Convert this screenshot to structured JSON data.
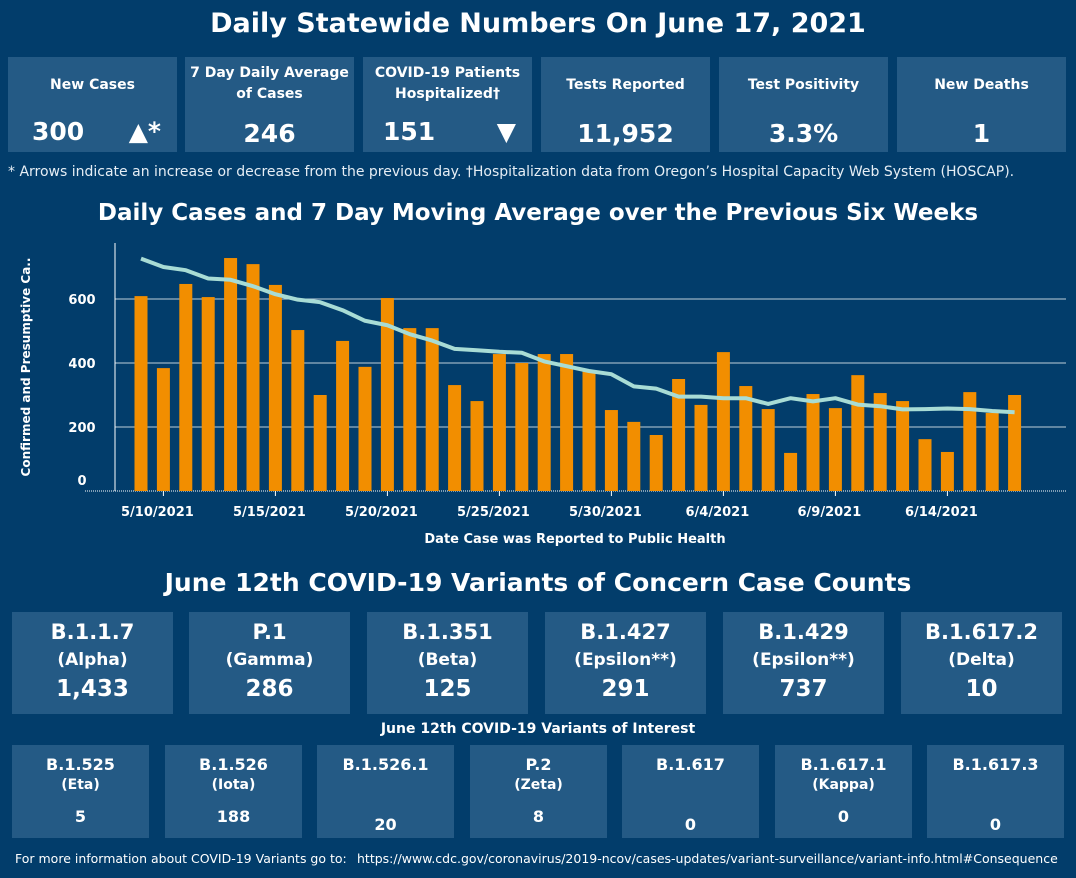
{
  "header": {
    "title": "Daily Statewide Numbers On June 17, 2021"
  },
  "kpis": [
    {
      "label": "New Cases",
      "value": "300",
      "indicator": "▲*"
    },
    {
      "label": "7 Day Daily Average of Cases",
      "value": "246"
    },
    {
      "label": "COVID-19 Patients Hospitalized†",
      "value": "151",
      "indicator": "▼"
    },
    {
      "label": "Tests Reported",
      "value": "11,952"
    },
    {
      "label": "Test Positivity",
      "value": "3.3%"
    },
    {
      "label": "New Deaths",
      "value": "1"
    }
  ],
  "footnote": "* Arrows indicate an increase or decrease from the previous day. †Hospitalization data from Oregon’s Hospital Capacity Web System (HOSCAP).",
  "chart_data": {
    "type": "bar",
    "title": "Daily Cases and 7 Day Moving Average over the Previous Six Weeks",
    "xlabel": "Date Case was Reported to Public Health",
    "ylabel": "Confirmed and Presumptive Ca..",
    "ylim": [
      0,
      770
    ],
    "yticks": [
      0,
      200,
      400,
      600
    ],
    "xtick_labels": [
      "5/10/2021",
      "5/15/2021",
      "5/20/2021",
      "5/25/2021",
      "5/30/2021",
      "6/4/2021",
      "6/9/2021",
      "6/14/2021"
    ],
    "grid": true,
    "start_date": "2021-05-09",
    "bar_color": "#f28e00",
    "line_color": "#a8dcd5",
    "series": [
      {
        "type": "bar",
        "values": [
          609,
          384,
          647,
          606,
          728,
          709,
          644,
          503,
          300,
          469,
          388,
          603,
          509,
          509,
          331,
          281,
          428,
          400,
          428,
          428,
          375,
          253,
          216,
          175,
          350,
          269,
          434,
          328,
          256,
          119,
          303,
          259,
          362,
          306,
          281,
          162,
          122,
          309,
          244,
          300
        ]
      },
      {
        "type": "line",
        "values": [
          726,
          700,
          690,
          664,
          660,
          640,
          615,
          598,
          590,
          565,
          532,
          518,
          490,
          470,
          444,
          440,
          435,
          432,
          405,
          390,
          375,
          365,
          327,
          320,
          295,
          295,
          290,
          290,
          272,
          290,
          280,
          290,
          270,
          265,
          255,
          256,
          258,
          256,
          250,
          246
        ]
      }
    ]
  },
  "variants": {
    "title": "June 12th  COVID-19 Variants of Concern Case Counts",
    "concern": [
      {
        "name": "B.1.1.7",
        "alias": "(Alpha)",
        "count": "1,433"
      },
      {
        "name": "P.1",
        "alias": "(Gamma)",
        "count": "286"
      },
      {
        "name": "B.1.351",
        "alias": "(Beta)",
        "count": "125"
      },
      {
        "name": "B.1.427",
        "alias": "(Epsilon**)",
        "count": "291"
      },
      {
        "name": "B.1.429",
        "alias": "(Epsilon**)",
        "count": "737"
      },
      {
        "name": "B.1.617.2",
        "alias": "(Delta)",
        "count": "10"
      }
    ],
    "interest_title": "June 12th COVID-19 Variants of Interest",
    "interest": [
      {
        "name": "B.1.525",
        "alias": "(Eta)",
        "count": "5"
      },
      {
        "name": "B.1.526",
        "alias": "(Iota)",
        "count": "188"
      },
      {
        "name": "B.1.526.1",
        "alias": "",
        "count": "20"
      },
      {
        "name": "P.2",
        "alias": "(Zeta)",
        "count": "8"
      },
      {
        "name": "B.1.617",
        "alias": "",
        "count": "0"
      },
      {
        "name": "B.1.617.1",
        "alias": "(Kappa)",
        "count": "0"
      },
      {
        "name": "B.1.617.3",
        "alias": "",
        "count": "0"
      }
    ]
  },
  "footer": {
    "text": "For more information about COVID-19 Variants go to:",
    "link": "https://www.cdc.gov/coronavirus/2019-ncov/cases-updates/variant-surveillance/variant-info.html#Consequence"
  }
}
